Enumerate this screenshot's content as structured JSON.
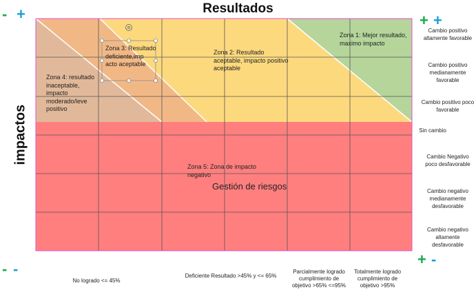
{
  "title": "Resultados",
  "y_axis_label": "impactos",
  "corner_signs": {
    "top_left": {
      "first": "-",
      "second": "+"
    },
    "top_right": {
      "first": "+",
      "second": "+"
    },
    "bottom_left": {
      "first": "-",
      "second": "-"
    },
    "bottom_right": {
      "first": "+",
      "second": "-"
    }
  },
  "colors": {
    "green_sign": "#1aaa4a",
    "blue_sign": "#1a9fd8",
    "yellow_zone": "#fdd97e",
    "orange_zone": "#f1b886",
    "tan_zone": "#e1b99a",
    "green_zone": "#b5d59b",
    "red_zone": "#ff7f7f",
    "grid_line": "#555555",
    "border": "#e34fd1"
  },
  "zones": {
    "zone1": "Zona 1: Mejor resultado, maximo impacto",
    "zone2": "Zona 2: Resultado aceptable, impacto positivo aceptable",
    "zone3": "Zona 3: Resultado deficiente,imp acto aceptable",
    "zone4": "Zona 4: resultado inaceptable, impacto moderado/leve positivo",
    "zone5": "Zona 5: Zona de impacto negativo",
    "risk": "Gestión de riesgos"
  },
  "row_labels": [
    "Cambio positivo altamente favorable",
    "Cambio positivo medianamente favorable",
    "Cambio positivo poco favorable",
    "Sin cambio",
    "Cambio Negativo poco desfavorable",
    "Cambio negativo medianamente desfavorable",
    "Cambio negativo altamente desfavorable"
  ],
  "column_labels": [
    "No logrado <= 45%",
    "Deficiente Resultado  >45% y <= 65%",
    "Parcialmente logrado cumplimiento de objetivo >65% <=95%",
    "Totalmente logrado cumplimiento de objetivo >95%"
  ]
}
